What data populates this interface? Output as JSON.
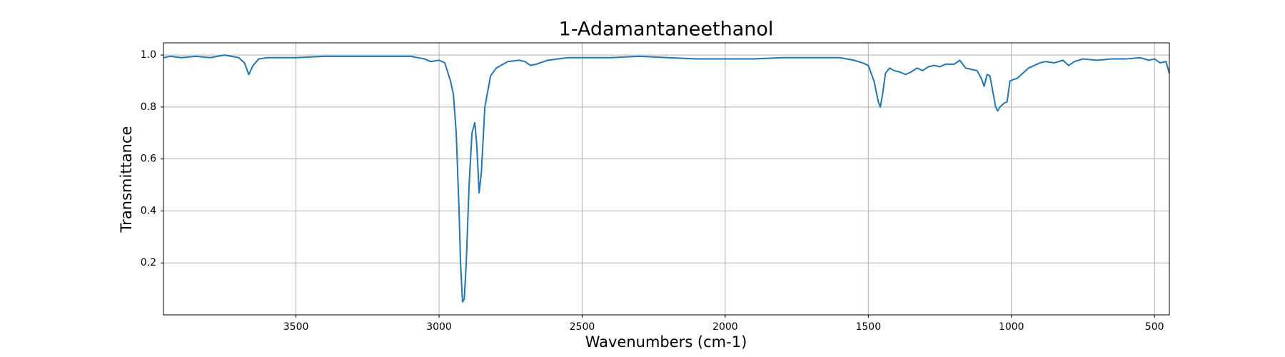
{
  "chart_data": {
    "type": "line",
    "title": "1-Adamantaneethanol",
    "x_label": "Wavenumbers (cm-1)",
    "y_label": "Transmittance",
    "x": [
      3963,
      3940,
      3900,
      3850,
      3800,
      3750,
      3700,
      3680,
      3665,
      3650,
      3630,
      3600,
      3500,
      3400,
      3300,
      3200,
      3100,
      3050,
      3030,
      3000,
      2980,
      2960,
      2950,
      2940,
      2930,
      2925,
      2918,
      2912,
      2905,
      2895,
      2885,
      2875,
      2868,
      2860,
      2852,
      2840,
      2820,
      2800,
      2760,
      2720,
      2700,
      2680,
      2660,
      2620,
      2550,
      2500,
      2400,
      2300,
      2200,
      2100,
      2000,
      1900,
      1800,
      1700,
      1600,
      1550,
      1520,
      1500,
      1480,
      1465,
      1458,
      1450,
      1440,
      1425,
      1410,
      1390,
      1370,
      1350,
      1330,
      1310,
      1290,
      1270,
      1250,
      1230,
      1200,
      1180,
      1160,
      1140,
      1120,
      1105,
      1095,
      1085,
      1075,
      1065,
      1055,
      1048,
      1040,
      1025,
      1015,
      1005,
      995,
      980,
      960,
      940,
      920,
      900,
      880,
      850,
      820,
      800,
      780,
      750,
      700,
      650,
      600,
      550,
      520,
      500,
      480,
      460,
      448
    ],
    "series": [
      {
        "name": "1-Adamantaneethanol",
        "color": "#1f77b4",
        "values": [
          0.99,
          0.995,
          0.99,
          0.995,
          0.99,
          1.0,
          0.99,
          0.97,
          0.925,
          0.96,
          0.985,
          0.99,
          0.99,
          0.995,
          0.995,
          0.995,
          0.995,
          0.985,
          0.975,
          0.98,
          0.97,
          0.9,
          0.85,
          0.7,
          0.4,
          0.2,
          0.05,
          0.06,
          0.2,
          0.5,
          0.7,
          0.74,
          0.65,
          0.47,
          0.55,
          0.8,
          0.92,
          0.95,
          0.975,
          0.98,
          0.975,
          0.96,
          0.965,
          0.98,
          0.99,
          0.99,
          0.99,
          0.995,
          0.99,
          0.985,
          0.985,
          0.985,
          0.99,
          0.99,
          0.99,
          0.98,
          0.97,
          0.96,
          0.9,
          0.82,
          0.8,
          0.85,
          0.93,
          0.95,
          0.94,
          0.935,
          0.925,
          0.935,
          0.95,
          0.94,
          0.955,
          0.96,
          0.955,
          0.965,
          0.965,
          0.98,
          0.95,
          0.945,
          0.94,
          0.91,
          0.88,
          0.925,
          0.92,
          0.86,
          0.8,
          0.785,
          0.8,
          0.815,
          0.82,
          0.9,
          0.905,
          0.91,
          0.93,
          0.95,
          0.96,
          0.97,
          0.975,
          0.97,
          0.98,
          0.96,
          0.975,
          0.985,
          0.98,
          0.985,
          0.985,
          0.99,
          0.98,
          0.985,
          0.97,
          0.975,
          0.93
        ]
      }
    ],
    "xlim": [
      3963,
      448
    ],
    "ylim": [
      0,
      1.047
    ],
    "xticks": [
      3500,
      3000,
      2500,
      2000,
      1500,
      1000,
      500
    ],
    "yticks": [
      0.2,
      0.4,
      0.6,
      0.8,
      {
        "value": 1,
        "label": "1.0"
      }
    ],
    "grid": true
  }
}
